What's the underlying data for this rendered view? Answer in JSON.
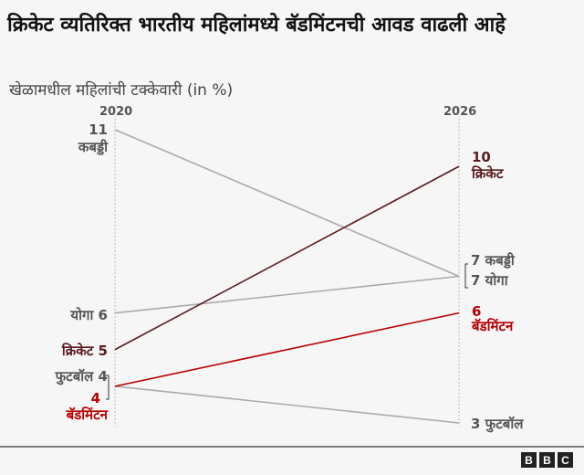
{
  "chart_data": {
    "type": "slope",
    "title": "क्रिकेट व्यतिरिक्त भारतीय महिलांमध्ये बॅडमिंटनची आवड वाढली आहे",
    "subtitle": "खेळामधील महिलांची टक्केवारी (in %)",
    "x": [
      "2020",
      "2026"
    ],
    "ylim": [
      3,
      11
    ],
    "series": [
      {
        "name": "कबड्डी",
        "values": [
          11,
          7
        ],
        "color": "#aaaaaa"
      },
      {
        "name": "योगा",
        "values": [
          6,
          7
        ],
        "color": "#aaaaaa"
      },
      {
        "name": "क्रिकेट",
        "values": [
          5,
          10
        ],
        "color": "#5c1a1e"
      },
      {
        "name": "फुटबॉल",
        "values": [
          4,
          3
        ],
        "color": "#aaaaaa"
      },
      {
        "name": "बॅडमिंटन",
        "values": [
          4,
          6
        ],
        "color": "#b80000"
      }
    ],
    "labels": {
      "left": {
        "kabaddi_val": "11",
        "kabaddi": "कबड्डी",
        "yoga": "योगा 6",
        "cricket": "क्रिकेट 5",
        "football": "फुटबॉल 4",
        "badminton_val": "4",
        "badminton": "बॅडमिंटन"
      },
      "right": {
        "cricket_val": "10",
        "cricket": "क्रिकेट",
        "kabaddi": "7 कबड्डी",
        "yoga": "7 योगा",
        "badminton_val": "6",
        "badminton": "बॅडमिंटन",
        "football": "3 फुटबॉल"
      }
    }
  },
  "logo": "BBC"
}
